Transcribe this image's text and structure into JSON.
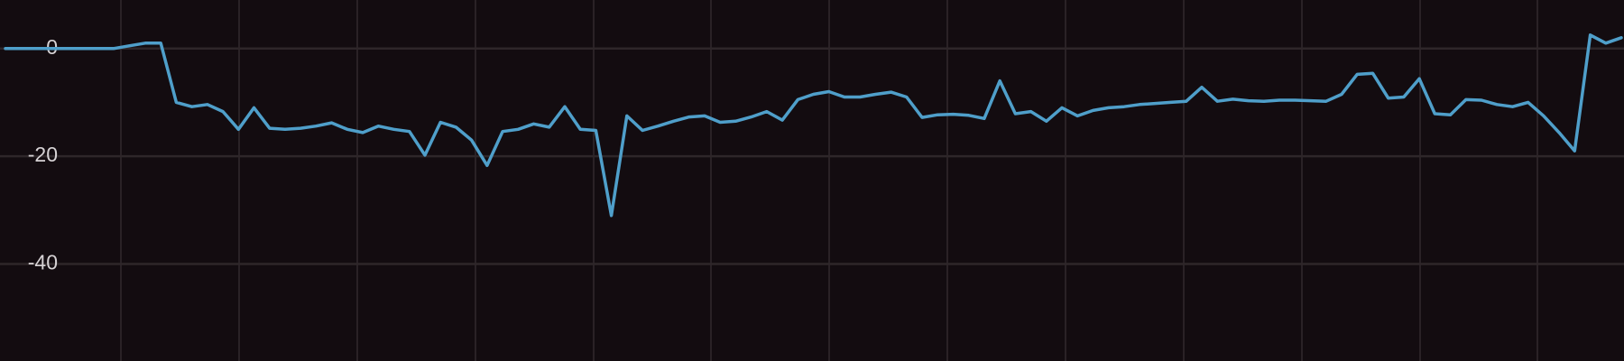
{
  "chart_data": {
    "type": "line",
    "series": [
      {
        "color": "#4f9fca",
        "values": [
          0,
          0,
          0,
          0,
          0,
          0,
          0,
          0,
          0.5,
          1,
          1,
          -10,
          -10.8,
          -10.4,
          -11.7,
          -15,
          -11,
          -14.8,
          -15,
          -14.8,
          -14.4,
          -13.8,
          -15,
          -15.6,
          -14.4,
          -15,
          -15.4,
          -19.8,
          -13.7,
          -14.6,
          -17,
          -21.7,
          -15.4,
          -15,
          -14,
          -14.6,
          -10.8,
          -15,
          -15.2,
          -31,
          -12.5,
          -15.2,
          -14.4,
          -13.5,
          -12.7,
          -12.5,
          -13.7,
          -13.5,
          -12.7,
          -11.7,
          -13.3,
          -9.5,
          -8.5,
          -8,
          -9,
          -9,
          -8.5,
          -8.1,
          -9,
          -12.8,
          -12.3,
          -12.2,
          -12.4,
          -13,
          -6,
          -12.1,
          -11.7,
          -13.5,
          -11,
          -12.5,
          -11.5,
          -11,
          -10.8,
          -10.4,
          -10.2,
          -10,
          -9.8,
          -7.2,
          -9.8,
          -9.4,
          -9.7,
          -9.8,
          -9.6,
          -9.6,
          -9.7,
          -9.8,
          -8.5,
          -4.8,
          -4.6,
          -9.2,
          -9,
          -5.6,
          -12.1,
          -12.3,
          -9.5,
          -9.6,
          -10.4,
          -10.8,
          -10,
          -12.5,
          -15.6,
          -19,
          2.5,
          1,
          2
        ]
      }
    ],
    "ylim": [
      -58,
      9
    ],
    "yticks": [
      0,
      -20,
      -40
    ],
    "grid": true
  }
}
